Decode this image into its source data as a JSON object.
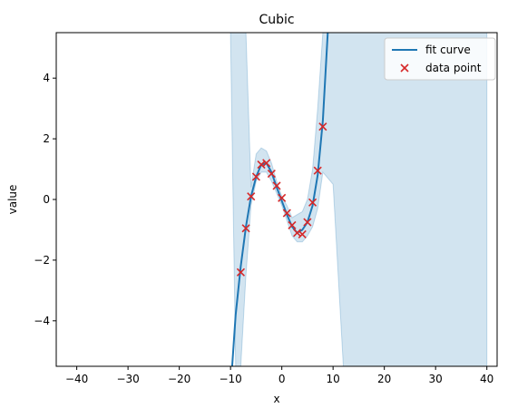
{
  "chart_data": {
    "type": "line",
    "title": "Cubic",
    "xlabel": "x",
    "ylabel": "value",
    "xlim": [
      -44,
      42
    ],
    "ylim": [
      -5.5,
      5.5
    ],
    "xticks": [
      -40,
      -30,
      -20,
      -10,
      0,
      10,
      20,
      30,
      40
    ],
    "xtick_labels": [
      "−40",
      "−30",
      "−20",
      "−10",
      "0",
      "10",
      "20",
      "30",
      "40"
    ],
    "yticks": [
      -4,
      -2,
      0,
      2,
      4
    ],
    "ytick_labels": [
      "−4",
      "−2",
      "0",
      "2",
      "4"
    ],
    "grid": false,
    "legend_position": "top-right",
    "colors": {
      "line": "#1f77b4",
      "band": "#1f77b4",
      "points": "#d62728"
    },
    "series": [
      {
        "name": "fit curve",
        "kind": "line",
        "x": [
          -10,
          -9,
          -8,
          -7,
          -6,
          -5,
          -4,
          -3,
          -2,
          -1,
          0,
          1,
          2,
          3,
          4,
          5,
          6,
          7,
          8,
          9
        ],
        "y": [
          -6.3,
          -3.8,
          -2.2,
          -0.9,
          0.1,
          0.75,
          1.15,
          1.2,
          0.9,
          0.4,
          -0.05,
          -0.5,
          -0.9,
          -1.1,
          -1.0,
          -0.75,
          -0.2,
          0.8,
          2.6,
          5.6
        ]
      },
      {
        "name": "data point",
        "kind": "scatter",
        "x": [
          -8,
          -7,
          -6,
          -5,
          -4,
          -3,
          -2,
          -1,
          0,
          1,
          2,
          3,
          4,
          5,
          6,
          7,
          8
        ],
        "y": [
          -2.4,
          -0.95,
          0.1,
          0.75,
          1.15,
          1.2,
          0.85,
          0.45,
          0.05,
          -0.45,
          -0.85,
          -1.1,
          -1.15,
          -0.75,
          -0.1,
          0.95,
          2.4
        ]
      }
    ],
    "band": {
      "x": [
        -40,
        -10,
        -9,
        -8,
        -7,
        -6,
        -5,
        -4,
        -3,
        -2,
        -1,
        0,
        1,
        2,
        3,
        4,
        5,
        6,
        7,
        8,
        10,
        12,
        40
      ],
      "upper": [
        5.5,
        5.5,
        5.5,
        5.5,
        5.5,
        0.4,
        1.5,
        1.7,
        1.6,
        1.2,
        0.6,
        0.1,
        -0.2,
        -0.6,
        -0.5,
        -0.4,
        0.0,
        1.0,
        3.0,
        5.5,
        5.5,
        5.5,
        5.5
      ],
      "lower": [
        5.5,
        5.5,
        -5.5,
        -5.5,
        -2.5,
        -0.2,
        0.6,
        0.9,
        0.9,
        0.6,
        0.2,
        -0.2,
        -0.7,
        -1.2,
        -1.4,
        -1.4,
        -1.2,
        -0.9,
        -0.3,
        0.9,
        0.5,
        -5.5,
        -5.5
      ],
      "outer_upper_left": 5.5,
      "outer_lower": -5.5
    }
  }
}
